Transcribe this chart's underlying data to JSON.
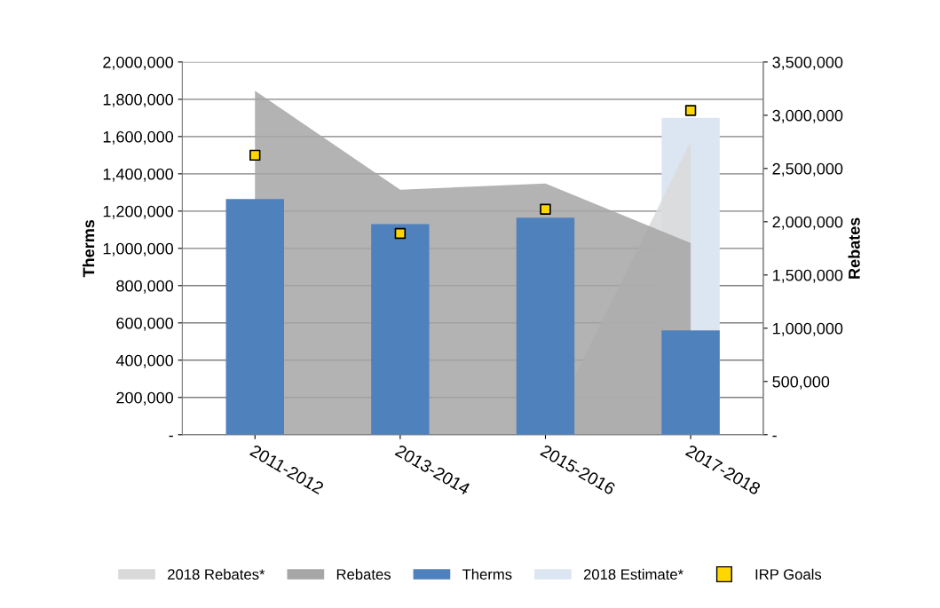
{
  "chart_data": {
    "type": "bar",
    "categories": [
      "2011-2012",
      "2013-2014",
      "2015-2016",
      "2017-2018"
    ],
    "ylabel": "Therms",
    "y2label": "Rebates",
    "ylim": [
      0,
      2000000
    ],
    "yticks": [
      {
        "value": 0,
        "label": "-"
      },
      {
        "value": 200000,
        "label": "200,000"
      },
      {
        "value": 400000,
        "label": "400,000"
      },
      {
        "value": 600000,
        "label": "600,000"
      },
      {
        "value": 800000,
        "label": "800,000"
      },
      {
        "value": 1000000,
        "label": "1,000,000"
      },
      {
        "value": 1200000,
        "label": "1,200,000"
      },
      {
        "value": 1400000,
        "label": "1,400,000"
      },
      {
        "value": 1600000,
        "label": "1,600,000"
      },
      {
        "value": 1800000,
        "label": "1,800,000"
      },
      {
        "value": 2000000,
        "label": "2,000,000"
      }
    ],
    "y2lim": [
      0,
      3500000
    ],
    "y2ticks": [
      {
        "value": 0,
        "label": "-"
      },
      {
        "value": 500000,
        "label": "500,000"
      },
      {
        "value": 1000000,
        "label": "1,000,000"
      },
      {
        "value": 1500000,
        "label": "1,500,000"
      },
      {
        "value": 2000000,
        "label": "2,000,000"
      },
      {
        "value": 2500000,
        "label": "2,500,000"
      },
      {
        "value": 3000000,
        "label": "3,000,000"
      },
      {
        "value": 3500000,
        "label": "3,500,000"
      }
    ],
    "grid": "y",
    "legend": "bottom",
    "series": [
      {
        "name": "2018 Rebates*",
        "type": "area",
        "axis": "y2",
        "color": "#d9d9d9",
        "values": [
          null,
          null,
          0,
          2750000
        ]
      },
      {
        "name": "Rebates",
        "type": "area",
        "axis": "y2",
        "color": "#a6a6a6",
        "values": [
          3230000,
          2300000,
          2360000,
          1800000
        ]
      },
      {
        "name": "Therms",
        "color": "#4f81bd",
        "values": [
          1265000,
          1130000,
          1165000,
          560000
        ]
      },
      {
        "name": "2018 Estimate*",
        "color": "#dce6f2",
        "values": [
          null,
          null,
          null,
          1700000
        ]
      },
      {
        "name": "IRP Goals",
        "type": "scatter",
        "marker": "square",
        "color": "#ffd700",
        "values": [
          1500000,
          1080000,
          1210000,
          1740000
        ]
      }
    ]
  }
}
